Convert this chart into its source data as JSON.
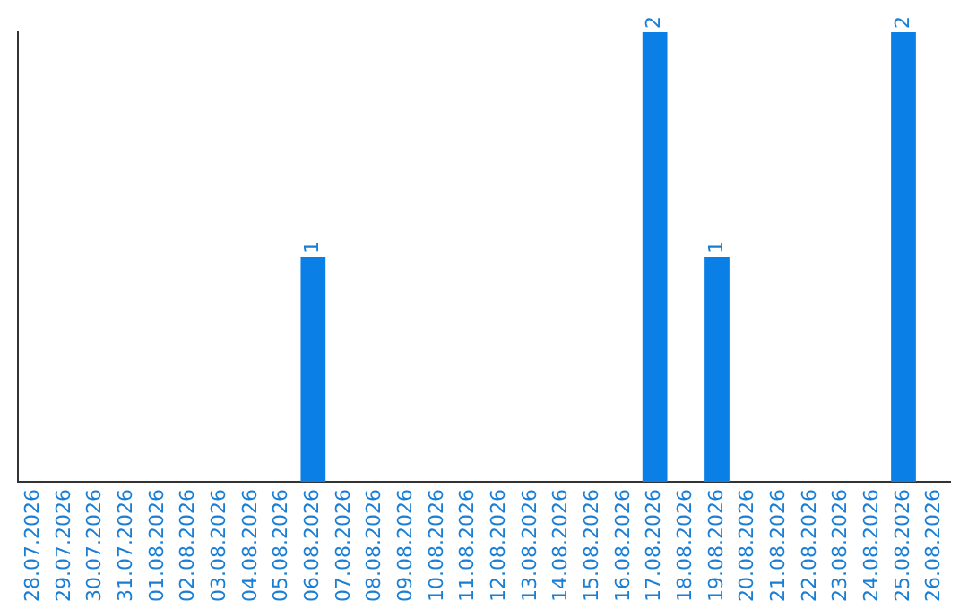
{
  "chart_data": {
    "type": "bar",
    "categories": [
      "28.07.2026",
      "29.07.2026",
      "30.07.2026",
      "31.07.2026",
      "01.08.2026",
      "02.08.2026",
      "03.08.2026",
      "04.08.2026",
      "05.08.2026",
      "06.08.2026",
      "07.08.2026",
      "08.08.2026",
      "09.08.2026",
      "10.08.2026",
      "11.08.2026",
      "12.08.2026",
      "13.08.2026",
      "14.08.2026",
      "15.08.2026",
      "16.08.2026",
      "17.08.2026",
      "18.08.2026",
      "19.08.2026",
      "20.08.2026",
      "21.08.2026",
      "22.08.2026",
      "23.08.2026",
      "24.08.2026",
      "25.08.2026",
      "26.08.2026"
    ],
    "values": [
      0,
      0,
      0,
      0,
      0,
      0,
      0,
      0,
      0,
      1,
      0,
      0,
      0,
      0,
      0,
      0,
      0,
      0,
      0,
      0,
      2,
      0,
      1,
      0,
      0,
      0,
      0,
      0,
      2,
      0
    ],
    "value_labels": [
      null,
      null,
      null,
      null,
      null,
      null,
      null,
      null,
      null,
      "1",
      null,
      null,
      null,
      null,
      null,
      null,
      null,
      null,
      null,
      null,
      "2",
      null,
      "1",
      null,
      null,
      null,
      null,
      null,
      "2",
      null
    ],
    "color": "#0a7fe6",
    "grid": false,
    "legend": false,
    "tick_labels": "x"
  }
}
